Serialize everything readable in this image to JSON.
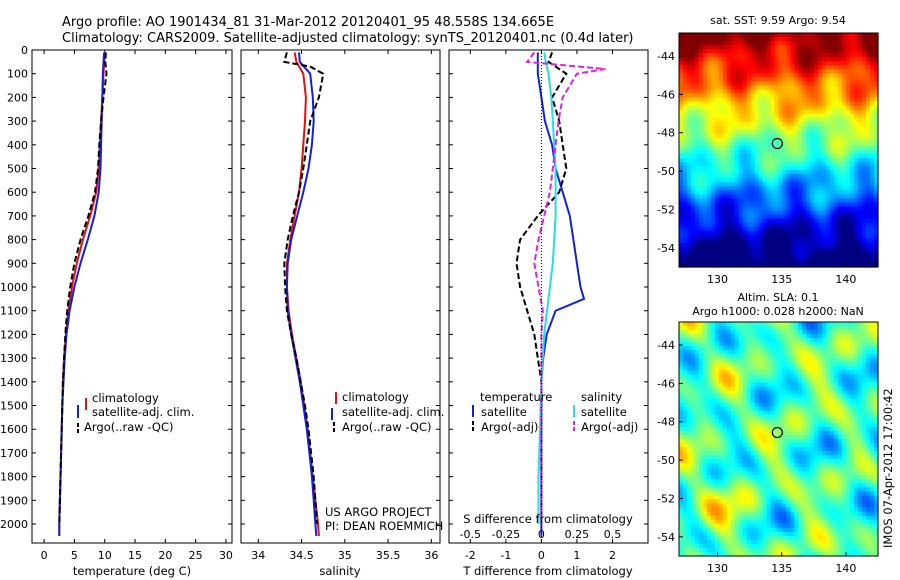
{
  "header": {
    "line1": "Argo profile: AO 1901434_81 31-Mar-2012 20120401_95 48.558S 134.665E",
    "line2": "Climatology: CARS2009. Satellite-adjusted climatology: synTS_20120401.nc (0.4d later)"
  },
  "colors": {
    "climatology": "#e01010",
    "satellite": "#1020e0",
    "argo": "#000000",
    "s_satellite": "#20e0e0",
    "s_argo": "#e020e0"
  },
  "chart_data": [
    {
      "type": "line",
      "xlabel": "temperature (deg C)",
      "ylabel": "",
      "xlim": [
        -2,
        31
      ],
      "ylim": [
        2080,
        0
      ],
      "xticks": [
        "0",
        "5",
        "10",
        "15",
        "20",
        "25",
        "30"
      ],
      "yticks": [
        "0",
        "100",
        "200",
        "300",
        "400",
        "500",
        "600",
        "700",
        "800",
        "900",
        "1000",
        "1100",
        "1200",
        "1300",
        "1400",
        "1500",
        "1600",
        "1700",
        "1800",
        "1900",
        "2000"
      ],
      "legend": [
        "climatology",
        "satellite-adj. clim.",
        "Argo(..raw -QC)"
      ],
      "series": [
        {
          "name": "climatology",
          "depth": [
            10,
            50,
            100,
            200,
            300,
            400,
            500,
            600,
            700,
            800,
            900,
            1000,
            1100,
            1200,
            1300,
            1400,
            1500,
            1600,
            1700,
            1800,
            1900,
            2000,
            2050
          ],
          "values": [
            10.1,
            9.9,
            9.8,
            9.6,
            9.4,
            9.2,
            9.0,
            8.6,
            7.6,
            6.4,
            5.4,
            4.6,
            4.0,
            3.6,
            3.3,
            3.1,
            3.0,
            2.9,
            2.8,
            2.7,
            2.6,
            2.5,
            2.5
          ]
        },
        {
          "name": "satellite-adj. clim.",
          "depth": [
            10,
            50,
            100,
            200,
            300,
            400,
            500,
            600,
            700,
            800,
            900,
            1000,
            1100,
            1200,
            1300,
            1400,
            1500,
            1600,
            1700,
            1800,
            1900,
            2000,
            2050
          ],
          "values": [
            9.9,
            9.8,
            9.7,
            9.6,
            9.5,
            9.4,
            9.3,
            9.0,
            8.3,
            7.2,
            6.0,
            5.0,
            4.2,
            3.7,
            3.4,
            3.2,
            3.0,
            2.9,
            2.8,
            2.7,
            2.6,
            2.5,
            2.5
          ]
        },
        {
          "name": "Argo(..raw -QC)",
          "depth": [
            10,
            50,
            100,
            200,
            300,
            400,
            500,
            600,
            700,
            800,
            900,
            1000,
            1100,
            1200,
            1300,
            1400,
            1500,
            1600,
            1700,
            1800,
            1900,
            2000
          ],
          "values": [
            10.2,
            10.1,
            10.3,
            9.8,
            9.4,
            9.1,
            8.9,
            8.4,
            7.3,
            6.0,
            5.0,
            4.3,
            3.8,
            3.5,
            3.3,
            3.1,
            3.0,
            2.9,
            2.8,
            2.7,
            2.6,
            2.5
          ]
        }
      ]
    },
    {
      "type": "line",
      "xlabel": "salinity",
      "ylabel": "",
      "xlim": [
        33.8,
        36.1
      ],
      "ylim": [
        2080,
        0
      ],
      "xticks": [
        "34",
        "34.5",
        "35",
        "35.5",
        "36"
      ],
      "legend": [
        "climatology",
        "satellite-adj. clim.",
        "Argo(..raw -QC)"
      ],
      "annotation": [
        "US ARGO PROJECT",
        "PI: DEAN ROEMMICH"
      ],
      "series": [
        {
          "name": "climatology",
          "depth": [
            10,
            50,
            100,
            200,
            300,
            400,
            500,
            600,
            700,
            800,
            900,
            1000,
            1100,
            1200,
            1300,
            1400,
            1500,
            1600,
            1700,
            1800,
            1900,
            2000,
            2050
          ],
          "values": [
            34.42,
            34.44,
            34.52,
            34.55,
            34.54,
            34.52,
            34.5,
            34.47,
            34.42,
            34.37,
            34.33,
            34.33,
            34.35,
            34.39,
            34.44,
            34.49,
            34.53,
            34.57,
            34.6,
            34.63,
            34.66,
            34.69,
            34.7
          ]
        },
        {
          "name": "satellite-adj. clim.",
          "depth": [
            10,
            50,
            100,
            200,
            300,
            400,
            500,
            600,
            700,
            800,
            900,
            1000,
            1100,
            1200,
            1300,
            1400,
            1500,
            1600,
            1700,
            1800,
            1900,
            2000,
            2050
          ],
          "values": [
            34.47,
            34.48,
            34.6,
            34.63,
            34.64,
            34.62,
            34.58,
            34.52,
            34.45,
            34.38,
            34.34,
            34.33,
            34.34,
            34.38,
            34.43,
            34.48,
            34.52,
            34.56,
            34.59,
            34.62,
            34.64,
            34.66,
            34.67
          ]
        },
        {
          "name": "Argo(..raw -QC)",
          "depth": [
            10,
            50,
            70,
            100,
            200,
            300,
            400,
            500,
            600,
            700,
            800,
            900,
            1000,
            1100,
            1200,
            1300,
            1400,
            1500,
            1600,
            1700,
            1800,
            1900,
            2000
          ],
          "values": [
            34.33,
            34.3,
            34.6,
            34.75,
            34.7,
            34.6,
            34.56,
            34.52,
            34.47,
            34.4,
            34.34,
            34.3,
            34.31,
            34.33,
            34.38,
            34.44,
            34.49,
            34.54,
            34.58,
            34.61,
            34.64,
            34.66,
            34.68
          ]
        }
      ]
    },
    {
      "type": "line",
      "xlabel": "T difference from climatology",
      "x2label": "S difference from climatology",
      "xlim": [
        -2.6,
        3.0
      ],
      "ylim": [
        2080,
        0
      ],
      "xticks": [
        "-2",
        "-1",
        "0",
        "1",
        "2"
      ],
      "x2ticks": [
        "-0.5",
        "-0.25",
        "0",
        "0.25",
        "0.5"
      ],
      "legend": {
        "temperature": [
          "satellite",
          "Argo(-adj)"
        ],
        "salinity": [
          "satellite",
          "Argo(-adj)"
        ]
      },
      "legend_heads": [
        "temperature",
        "salinity"
      ],
      "series": [
        {
          "name": "satellite",
          "depth": [
            10,
            50,
            100,
            200,
            300,
            400,
            500,
            600,
            700,
            800,
            900,
            1000,
            1050,
            1100,
            1200,
            1300,
            1400,
            1600,
            1800,
            2000,
            2050
          ],
          "values": [
            -0.1,
            -0.1,
            -0.1,
            0.0,
            0.1,
            0.3,
            0.4,
            0.6,
            0.8,
            0.9,
            1.0,
            1.1,
            1.2,
            0.4,
            0.15,
            0.05,
            0.0,
            0.0,
            0.0,
            0.0,
            0.0
          ]
        },
        {
          "name": "Argo(-adj)",
          "depth": [
            10,
            50,
            100,
            200,
            300,
            400,
            500,
            600,
            700,
            800,
            900,
            1000,
            1100,
            1200,
            1300,
            1400,
            1600,
            1800,
            2000
          ],
          "values": [
            0.3,
            0.2,
            0.7,
            0.3,
            0.5,
            0.6,
            0.7,
            0.5,
            -0.1,
            -0.6,
            -0.7,
            -0.6,
            -0.4,
            -0.2,
            -0.1,
            0.0,
            0.0,
            0.0,
            0.0
          ]
        },
        {
          "name": "s-satellite",
          "depth": [
            10,
            50,
            100,
            200,
            300,
            400,
            500,
            600,
            700,
            800,
            900,
            1000,
            1200,
            1400,
            1600,
            1800,
            2000
          ],
          "values": [
            0.02,
            0.03,
            0.05,
            0.07,
            0.08,
            0.09,
            0.1,
            0.1,
            0.1,
            0.09,
            0.08,
            0.06,
            0.02,
            0.0,
            -0.01,
            -0.02,
            -0.02
          ]
        },
        {
          "name": "s-Argo(-adj)",
          "depth": [
            10,
            50,
            80,
            100,
            150,
            200,
            300,
            400,
            500,
            600,
            700,
            800,
            900,
            1000,
            1100,
            1200,
            1400,
            1600,
            1800,
            2000
          ],
          "values": [
            -0.05,
            -0.1,
            0.45,
            0.25,
            0.2,
            0.15,
            0.12,
            0.1,
            0.08,
            0.06,
            0.02,
            -0.02,
            -0.05,
            -0.02,
            0.01,
            0.0,
            0.0,
            0.0,
            0.0,
            0.0
          ]
        }
      ]
    },
    {
      "type": "heatmap",
      "title": "sat. SST: 9.59  Argo: 9.54",
      "xticks": [
        "130",
        "135",
        "140"
      ],
      "yticks": [
        "-44",
        "-46",
        "-48",
        "-50",
        "-52",
        "-54"
      ],
      "xlim": [
        127,
        142.5
      ],
      "ylim": [
        -55,
        -42.8
      ],
      "marker": {
        "lon": 134.66,
        "lat": -48.56
      }
    },
    {
      "type": "heatmap",
      "title": "Altim. SLA: 0.1",
      "subtitle": "Argo h1000: 0.028 h2000: NaN",
      "xticks": [
        "130",
        "135",
        "140"
      ],
      "yticks": [
        "-44",
        "-46",
        "-48",
        "-50",
        "-52",
        "-54"
      ],
      "xlim": [
        127,
        142.5
      ],
      "ylim": [
        -55,
        -42.8
      ],
      "marker": {
        "lon": 134.66,
        "lat": -48.56
      }
    }
  ],
  "side_stamp": "IMOS 07-Apr-2012 17:00:42"
}
